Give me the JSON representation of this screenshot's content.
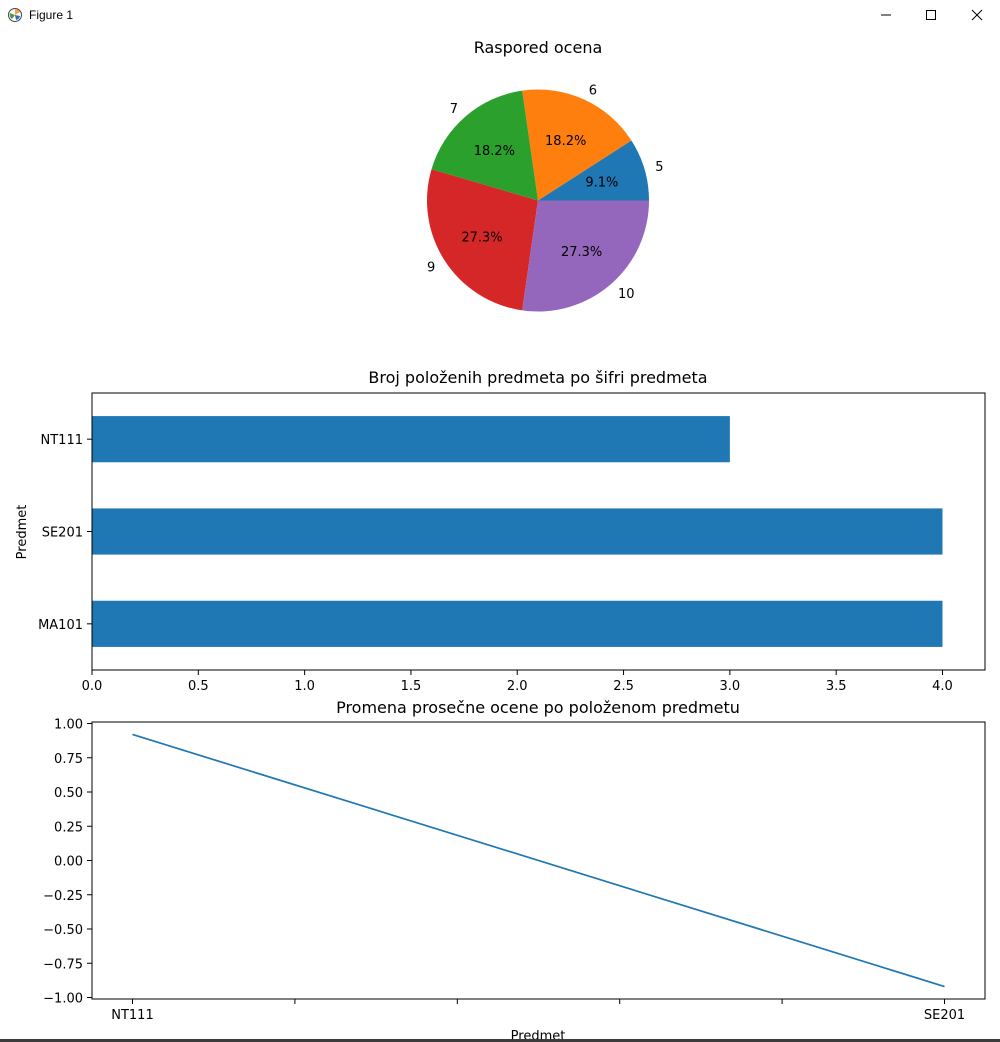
{
  "window": {
    "title": "Figure 1",
    "buttons": {
      "minimize": "minimize-icon",
      "maximize": "maximize-icon",
      "close": "close-icon"
    }
  },
  "colors": {
    "series": "#1f77b4",
    "pie": [
      "#1f77b4",
      "#ff7f0e",
      "#2ca02c",
      "#d62728",
      "#9467bd"
    ]
  },
  "chart_data": [
    {
      "type": "pie",
      "title": "Raspored ocena",
      "labels": [
        "5",
        "6",
        "7",
        "9",
        "10"
      ],
      "values": [
        1,
        2,
        2,
        3,
        3
      ],
      "percent_labels": [
        "9.1%",
        "18.2%",
        "18.2%",
        "27.3%",
        "27.3%"
      ]
    },
    {
      "type": "bar",
      "orientation": "horizontal",
      "title": "Broj položenih predmeta po šifri predmeta",
      "categories": [
        "MA101",
        "SE201",
        "NT111"
      ],
      "values": [
        4,
        4,
        3
      ],
      "xlabel": "",
      "ylabel": "Predmet",
      "xlim": [
        0,
        4.2
      ],
      "xticks": [
        "0.0",
        "0.5",
        "1.0",
        "1.5",
        "2.0",
        "2.5",
        "3.0",
        "3.5",
        "4.0"
      ]
    },
    {
      "type": "line",
      "title": "Promena prosečne ocene po položenom predmetu",
      "x": [
        "NT111",
        "SE201"
      ],
      "y": [
        0.92,
        -0.92
      ],
      "xlabel": "Predmet",
      "ylabel": "",
      "ylim": [
        -1.0,
        1.0
      ],
      "yticks": [
        "1.00",
        "0.75",
        "0.50",
        "0.25",
        "0.00",
        "−0.25",
        "−0.50",
        "−0.75",
        "−1.00"
      ],
      "xticklabels": [
        "NT111",
        "",
        "",
        "",
        "",
        "SE201"
      ]
    }
  ]
}
